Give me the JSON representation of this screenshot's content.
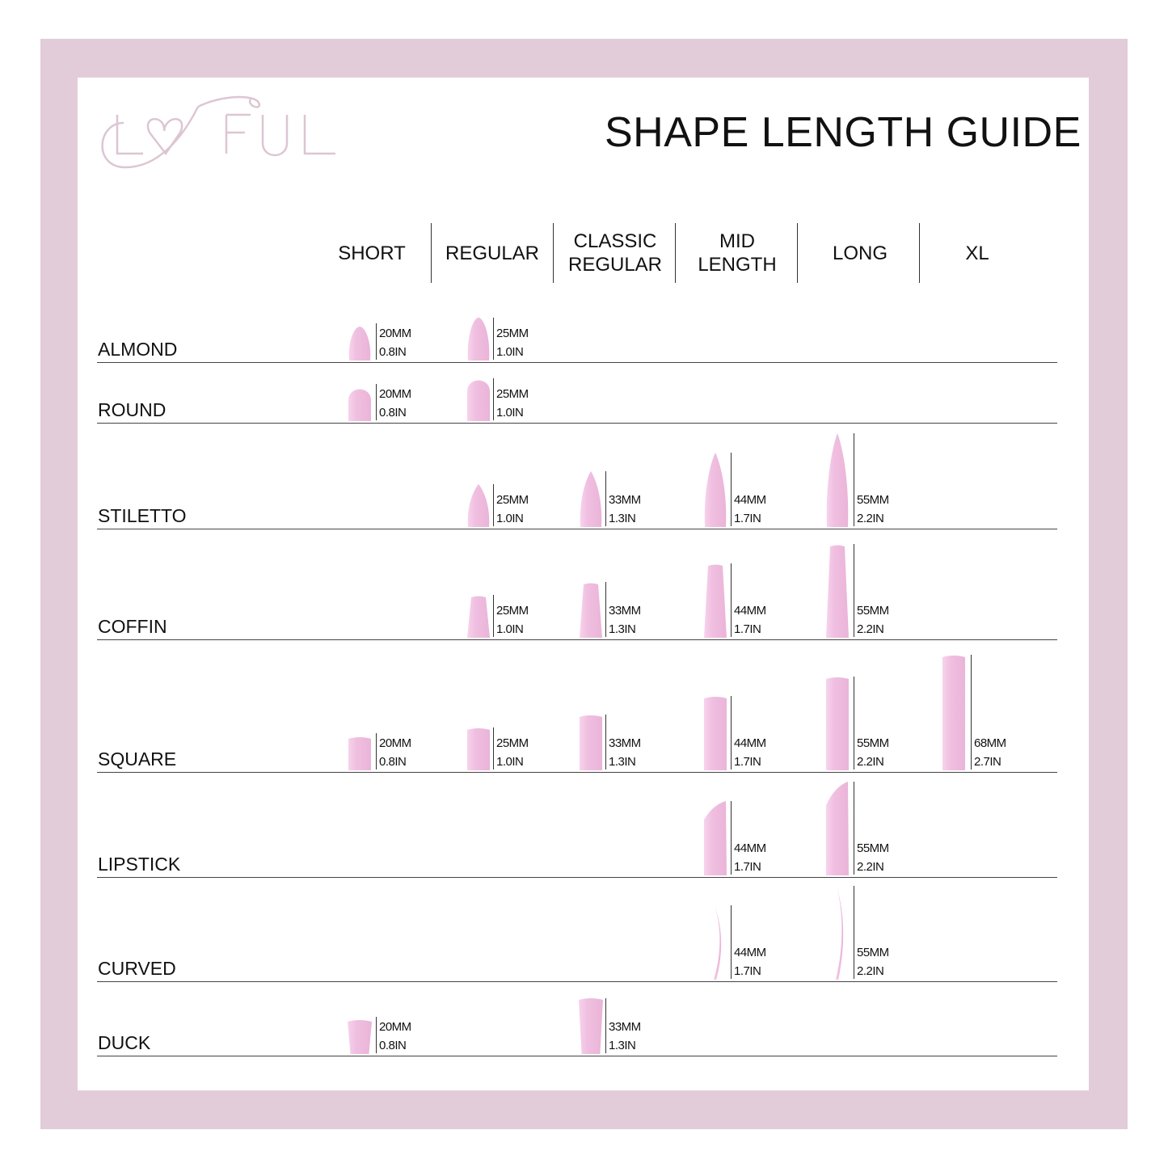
{
  "brand": {
    "logo_text": "LOVFUL"
  },
  "title": "SHAPE LENGTH GUIDE",
  "columns": [
    {
      "label": "SHORT"
    },
    {
      "label": "REGULAR"
    },
    {
      "label": "CLASSIC REGULAR"
    },
    {
      "label": "MID LENGTH"
    },
    {
      "label": "LONG"
    },
    {
      "label": "XL"
    }
  ],
  "colors": {
    "frame": "#e2ccd9",
    "nail": "#f0bfe0",
    "logo": "#dcc6d3"
  },
  "rows": [
    {
      "label": "ALMOND",
      "shape": "almond",
      "cells": [
        {
          "col": 0,
          "mm": "20MM",
          "in": "0.8IN"
        },
        {
          "col": 1,
          "mm": "25MM",
          "in": "1.0IN"
        }
      ]
    },
    {
      "label": "ROUND",
      "shape": "round",
      "cells": [
        {
          "col": 0,
          "mm": "20MM",
          "in": "0.8IN"
        },
        {
          "col": 1,
          "mm": "25MM",
          "in": "1.0IN"
        }
      ]
    },
    {
      "label": "STILETTO",
      "shape": "stiletto",
      "cells": [
        {
          "col": 1,
          "mm": "25MM",
          "in": "1.0IN"
        },
        {
          "col": 2,
          "mm": "33MM",
          "in": "1.3IN"
        },
        {
          "col": 3,
          "mm": "44MM",
          "in": "1.7IN"
        },
        {
          "col": 4,
          "mm": "55MM",
          "in": "2.2IN"
        }
      ]
    },
    {
      "label": "COFFIN",
      "shape": "coffin",
      "cells": [
        {
          "col": 1,
          "mm": "25MM",
          "in": "1.0IN"
        },
        {
          "col": 2,
          "mm": "33MM",
          "in": "1.3IN"
        },
        {
          "col": 3,
          "mm": "44MM",
          "in": "1.7IN"
        },
        {
          "col": 4,
          "mm": "55MM",
          "in": "2.2IN"
        }
      ]
    },
    {
      "label": "SQUARE",
      "shape": "square",
      "cells": [
        {
          "col": 0,
          "mm": "20MM",
          "in": "0.8IN"
        },
        {
          "col": 1,
          "mm": "25MM",
          "in": "1.0IN"
        },
        {
          "col": 2,
          "mm": "33MM",
          "in": "1.3IN"
        },
        {
          "col": 3,
          "mm": "44MM",
          "in": "1.7IN"
        },
        {
          "col": 4,
          "mm": "55MM",
          "in": "2.2IN"
        },
        {
          "col": 5,
          "mm": "68MM",
          "in": "2.7IN"
        }
      ]
    },
    {
      "label": "LIPSTICK",
      "shape": "lipstick",
      "cells": [
        {
          "col": 3,
          "mm": "44MM",
          "in": "1.7IN"
        },
        {
          "col": 4,
          "mm": "55MM",
          "in": "2.2IN"
        }
      ]
    },
    {
      "label": "CURVED",
      "shape": "curved",
      "cells": [
        {
          "col": 3,
          "mm": "44MM",
          "in": "1.7IN"
        },
        {
          "col": 4,
          "mm": "55MM",
          "in": "2.2IN"
        }
      ]
    },
    {
      "label": "DUCK",
      "shape": "duck",
      "cells": [
        {
          "col": 0,
          "mm": "20MM",
          "in": "0.8IN"
        },
        {
          "col": 2,
          "mm": "33MM",
          "in": "1.3IN"
        }
      ]
    }
  ]
}
